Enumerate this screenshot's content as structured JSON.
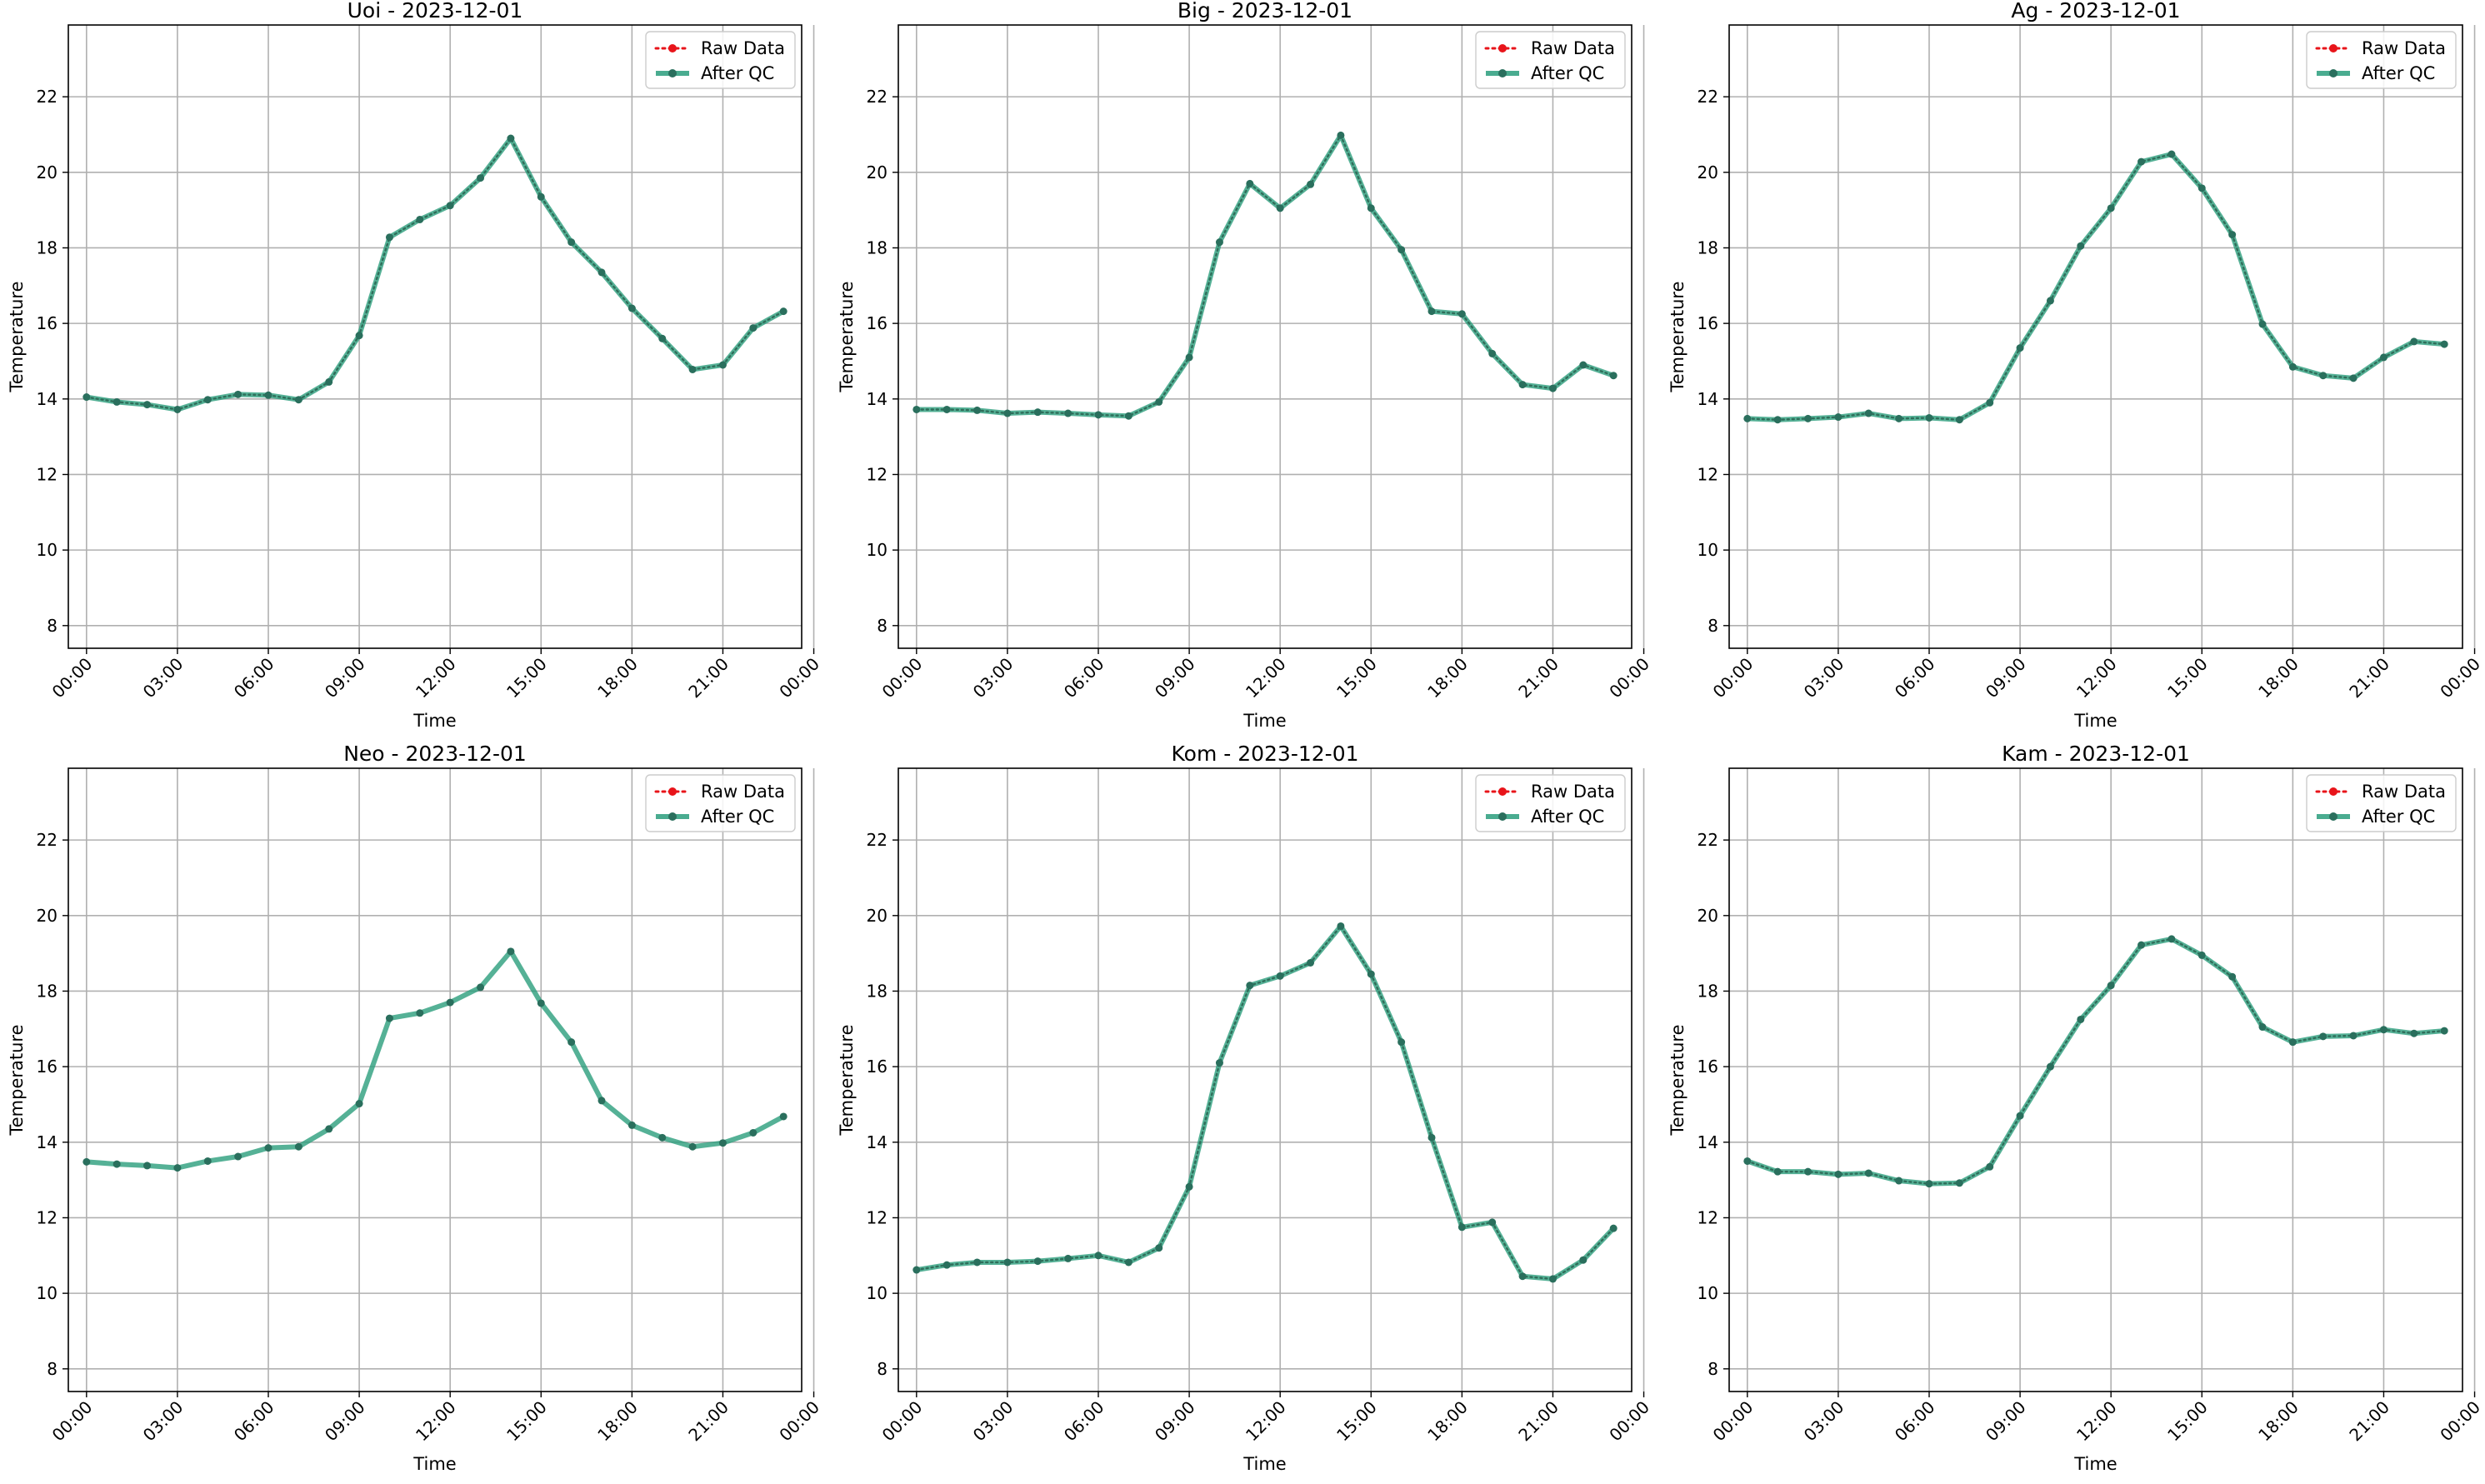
{
  "chart_data": [
    {
      "type": "line",
      "title": "Uoi - 2023-12-01",
      "xlabel": "Time",
      "ylabel": "Temperature",
      "ylim": [
        7.4,
        23.9
      ],
      "yticks": [
        "8",
        "10",
        "12",
        "14",
        "16",
        "18",
        "20",
        "22"
      ],
      "xlim": [
        -0.6,
        23.6
      ],
      "xticks": [
        "00:00",
        "03:00",
        "06:00",
        "09:00",
        "12:00",
        "15:00",
        "18:00",
        "21:00",
        "00:00"
      ],
      "grid": true,
      "legend": "top-right",
      "x": [
        "00:00",
        "01:00",
        "02:00",
        "03:00",
        "04:00",
        "05:00",
        "06:00",
        "07:00",
        "08:00",
        "09:00",
        "10:00",
        "11:00",
        "12:00",
        "13:00",
        "14:00",
        "15:00",
        "16:00",
        "17:00",
        "18:00",
        "19:00",
        "20:00",
        "21:00",
        "22:00",
        "23:00"
      ],
      "series": [
        {
          "name": "Raw Data",
          "color": "#e8141a",
          "values": [
            14.05,
            13.92,
            13.85,
            13.72,
            13.98,
            14.12,
            14.1,
            13.98,
            14.45,
            15.68,
            18.28,
            18.75,
            19.12,
            19.85,
            20.9,
            19.35,
            18.15,
            17.35,
            16.4,
            15.6,
            14.78,
            14.9,
            15.88,
            16.32
          ]
        },
        {
          "name": "After QC",
          "color": "#2a9d7c",
          "values": [
            14.05,
            13.92,
            13.85,
            13.72,
            13.98,
            14.12,
            14.1,
            13.98,
            14.45,
            15.68,
            18.28,
            18.75,
            19.12,
            19.85,
            20.9,
            19.35,
            18.15,
            17.35,
            16.4,
            15.6,
            14.78,
            14.9,
            15.88,
            16.32
          ]
        }
      ]
    },
    {
      "type": "line",
      "title": "Big - 2023-12-01",
      "xlabel": "Time",
      "ylabel": "Temperature",
      "ylim": [
        7.4,
        23.9
      ],
      "yticks": [
        "8",
        "10",
        "12",
        "14",
        "16",
        "18",
        "20",
        "22"
      ],
      "xlim": [
        -0.6,
        23.6
      ],
      "xticks": [
        "00:00",
        "03:00",
        "06:00",
        "09:00",
        "12:00",
        "15:00",
        "18:00",
        "21:00",
        "00:00"
      ],
      "grid": true,
      "legend": "top-right",
      "x": [
        "00:00",
        "01:00",
        "02:00",
        "03:00",
        "04:00",
        "05:00",
        "06:00",
        "07:00",
        "08:00",
        "09:00",
        "10:00",
        "11:00",
        "12:00",
        "13:00",
        "14:00",
        "15:00",
        "16:00",
        "17:00",
        "18:00",
        "19:00",
        "20:00",
        "21:00",
        "22:00",
        "23:00"
      ],
      "series": [
        {
          "name": "Raw Data",
          "color": "#e8141a",
          "values": [
            13.72,
            13.72,
            13.7,
            13.62,
            13.65,
            13.62,
            13.58,
            13.55,
            13.92,
            15.1,
            18.15,
            19.7,
            19.05,
            19.68,
            20.98,
            19.05,
            17.95,
            16.32,
            16.25,
            15.2,
            14.38,
            14.28,
            14.9,
            14.62
          ]
        },
        {
          "name": "After QC",
          "color": "#2a9d7c",
          "values": [
            13.72,
            13.72,
            13.7,
            13.62,
            13.65,
            13.62,
            13.58,
            13.55,
            13.92,
            15.1,
            18.15,
            19.7,
            19.05,
            19.68,
            20.98,
            19.05,
            17.95,
            16.32,
            16.25,
            15.2,
            14.38,
            14.28,
            14.9,
            14.62
          ]
        }
      ]
    },
    {
      "type": "line",
      "title": "Ag - 2023-12-01",
      "xlabel": "Time",
      "ylabel": "Temperature",
      "ylim": [
        7.4,
        23.9
      ],
      "yticks": [
        "8",
        "10",
        "12",
        "14",
        "16",
        "18",
        "20",
        "22"
      ],
      "xlim": [
        -0.6,
        23.6
      ],
      "xticks": [
        "00:00",
        "03:00",
        "06:00",
        "09:00",
        "12:00",
        "15:00",
        "18:00",
        "21:00",
        "00:00"
      ],
      "grid": true,
      "legend": "top-right",
      "x": [
        "00:00",
        "01:00",
        "02:00",
        "03:00",
        "04:00",
        "05:00",
        "06:00",
        "07:00",
        "08:00",
        "09:00",
        "10:00",
        "11:00",
        "12:00",
        "13:00",
        "14:00",
        "15:00",
        "16:00",
        "17:00",
        "18:00",
        "19:00",
        "20:00",
        "21:00",
        "22:00",
        "23:00"
      ],
      "series": [
        {
          "name": "Raw Data",
          "color": "#e8141a",
          "values": [
            13.48,
            13.45,
            13.48,
            13.52,
            13.62,
            13.48,
            13.5,
            13.45,
            13.9,
            15.35,
            16.6,
            18.05,
            19.05,
            20.28,
            20.48,
            19.58,
            18.35,
            15.98,
            14.85,
            14.62,
            14.55,
            15.1,
            15.52,
            15.45
          ]
        },
        {
          "name": "After QC",
          "color": "#2a9d7c",
          "values": [
            13.48,
            13.45,
            13.48,
            13.52,
            13.62,
            13.48,
            13.5,
            13.45,
            13.9,
            15.35,
            16.6,
            18.05,
            19.05,
            20.28,
            20.48,
            19.58,
            18.35,
            15.98,
            14.85,
            14.62,
            14.55,
            15.1,
            15.52,
            15.45
          ]
        }
      ]
    },
    {
      "type": "line",
      "title": "Neo - 2023-12-01",
      "xlabel": "Time",
      "ylabel": "Temperature",
      "ylim": [
        7.4,
        23.9
      ],
      "yticks": [
        "8",
        "10",
        "12",
        "14",
        "16",
        "18",
        "20",
        "22"
      ],
      "xlim": [
        -0.6,
        23.6
      ],
      "xticks": [
        "00:00",
        "03:00",
        "06:00",
        "09:00",
        "12:00",
        "15:00",
        "18:00",
        "21:00",
        "00:00"
      ],
      "grid": true,
      "legend": "top-right",
      "x": [
        "00:00",
        "01:00",
        "02:00",
        "03:00",
        "04:00",
        "05:00",
        "06:00",
        "07:00",
        "08:00",
        "09:00",
        "10:00",
        "11:00",
        "12:00",
        "13:00",
        "14:00",
        "15:00",
        "16:00",
        "17:00",
        "18:00",
        "19:00",
        "20:00",
        "21:00",
        "22:00",
        "23:00"
      ],
      "series": [
        {
          "name": "Raw Data",
          "color": "#e8141a",
          "values": [
            13.48,
            13.42,
            13.38,
            13.32,
            13.5,
            13.62,
            13.85,
            13.88,
            14.35,
            15.02,
            17.28,
            17.42,
            17.7,
            18.1,
            19.05,
            17.68,
            16.65,
            15.1,
            14.45,
            14.12,
            13.88,
            13.98,
            14.25,
            14.68
          ]
        },
        {
          "name": "After QC",
          "color": "#2a9d7c",
          "values": [
            13.48,
            13.42,
            13.38,
            13.32,
            13.5,
            13.62,
            13.85,
            13.88,
            14.35,
            15.02,
            17.28,
            17.42,
            17.7,
            18.1,
            19.05,
            17.68,
            16.65,
            15.1,
            14.45,
            14.12,
            13.88,
            13.98,
            14.25,
            14.68
          ]
        }
      ]
    },
    {
      "type": "line",
      "title": "Kom - 2023-12-01",
      "xlabel": "Time",
      "ylabel": "Temperature",
      "ylim": [
        7.4,
        23.9
      ],
      "yticks": [
        "8",
        "10",
        "12",
        "14",
        "16",
        "18",
        "20",
        "22"
      ],
      "xlim": [
        -0.6,
        23.6
      ],
      "xticks": [
        "00:00",
        "03:00",
        "06:00",
        "09:00",
        "12:00",
        "15:00",
        "18:00",
        "21:00",
        "00:00"
      ],
      "grid": true,
      "legend": "top-right",
      "x": [
        "00:00",
        "01:00",
        "02:00",
        "03:00",
        "04:00",
        "05:00",
        "06:00",
        "07:00",
        "08:00",
        "09:00",
        "10:00",
        "11:00",
        "12:00",
        "13:00",
        "14:00",
        "15:00",
        "16:00",
        "17:00",
        "18:00",
        "19:00",
        "20:00",
        "21:00",
        "22:00",
        "23:00"
      ],
      "series": [
        {
          "name": "Raw Data",
          "color": "#e8141a",
          "values": [
            10.62,
            10.75,
            10.82,
            10.82,
            10.85,
            10.92,
            11.0,
            10.82,
            11.2,
            12.82,
            16.1,
            18.15,
            18.4,
            18.75,
            19.72,
            18.45,
            16.65,
            14.12,
            11.75,
            11.88,
            10.45,
            10.38,
            10.88,
            11.72
          ]
        },
        {
          "name": "After QC",
          "color": "#2a9d7c",
          "values": [
            10.62,
            10.75,
            10.82,
            10.82,
            10.85,
            10.92,
            11.0,
            10.82,
            11.2,
            12.82,
            16.1,
            18.15,
            18.4,
            18.75,
            19.72,
            18.45,
            16.65,
            14.12,
            11.75,
            11.88,
            10.45,
            10.38,
            10.88,
            11.72
          ]
        }
      ]
    },
    {
      "type": "line",
      "title": "Kam - 2023-12-01",
      "xlabel": "Time",
      "ylabel": "Temperature",
      "ylim": [
        7.4,
        23.9
      ],
      "yticks": [
        "8",
        "10",
        "12",
        "14",
        "16",
        "18",
        "20",
        "22"
      ],
      "xlim": [
        -0.6,
        23.6
      ],
      "xticks": [
        "00:00",
        "03:00",
        "06:00",
        "09:00",
        "12:00",
        "15:00",
        "18:00",
        "21:00",
        "00:00"
      ],
      "grid": true,
      "legend": "top-right",
      "x": [
        "00:00",
        "01:00",
        "02:00",
        "03:00",
        "04:00",
        "05:00",
        "06:00",
        "07:00",
        "08:00",
        "09:00",
        "10:00",
        "11:00",
        "12:00",
        "13:00",
        "14:00",
        "15:00",
        "16:00",
        "17:00",
        "18:00",
        "19:00",
        "20:00",
        "21:00",
        "22:00",
        "23:00"
      ],
      "series": [
        {
          "name": "Raw Data",
          "color": "#e8141a",
          "values": [
            13.5,
            13.22,
            13.22,
            13.15,
            13.18,
            12.98,
            12.9,
            12.92,
            13.35,
            14.7,
            16.0,
            17.25,
            18.15,
            19.22,
            19.38,
            18.95,
            18.38,
            17.05,
            16.65,
            16.8,
            16.82,
            16.98,
            16.88,
            16.95
          ]
        },
        {
          "name": "After QC",
          "color": "#2a9d7c",
          "values": [
            13.5,
            13.22,
            13.22,
            13.15,
            13.18,
            12.98,
            12.9,
            12.92,
            13.35,
            14.7,
            16.0,
            17.25,
            18.15,
            19.22,
            19.38,
            18.95,
            18.38,
            17.05,
            16.65,
            16.8,
            16.82,
            16.98,
            16.88,
            16.95
          ]
        }
      ]
    }
  ]
}
